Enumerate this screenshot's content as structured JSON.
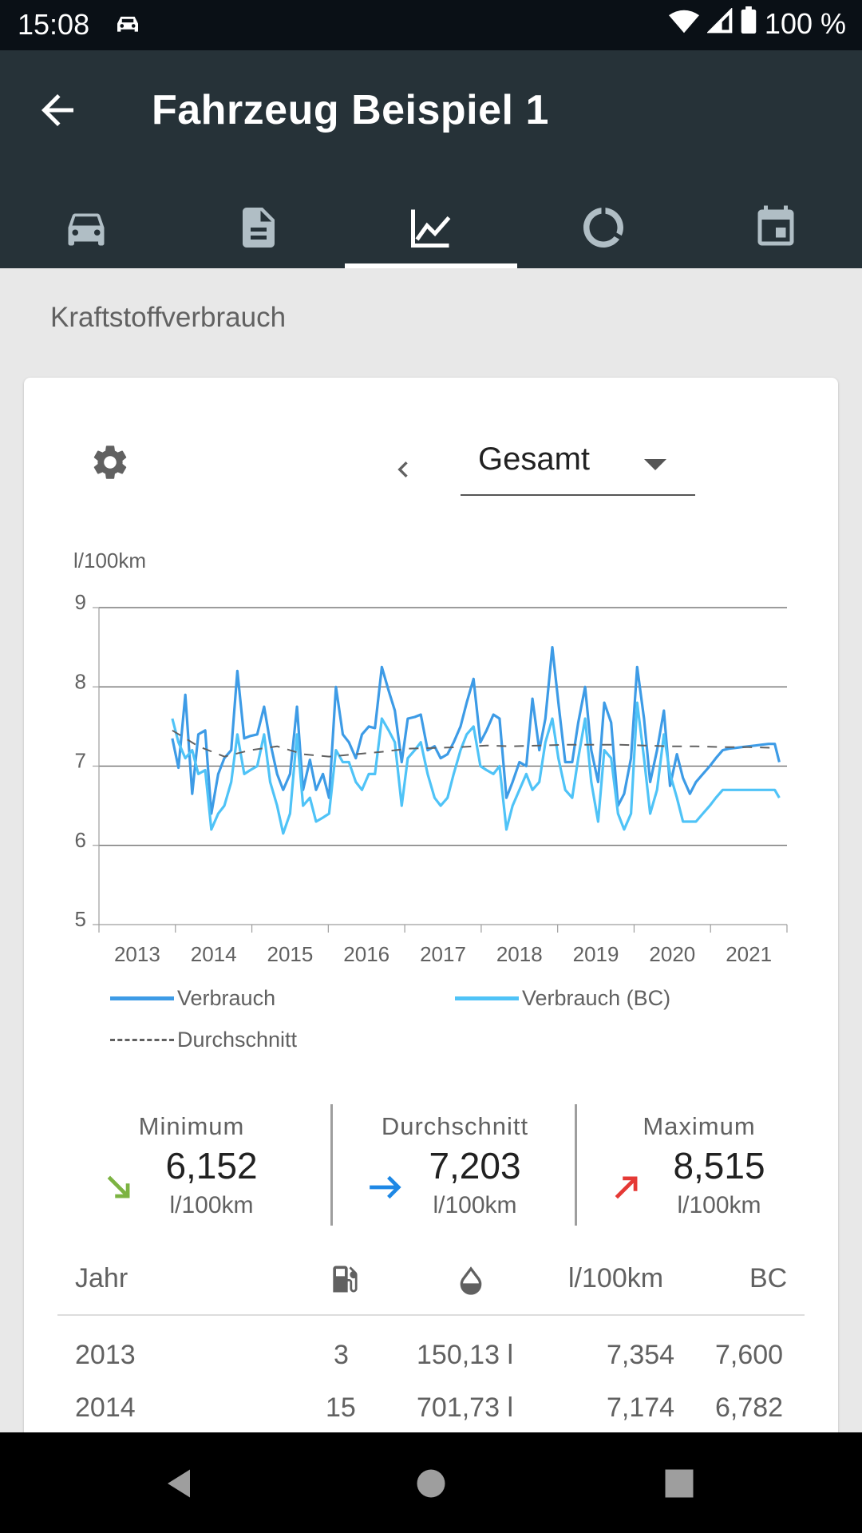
{
  "status": {
    "time": "15:08",
    "battery": "100 %"
  },
  "appbar": {
    "title": "Fahrzeug Beispiel 1",
    "tabs": [
      "car-icon",
      "document-icon",
      "chart-icon",
      "donut-icon",
      "calendar-icon"
    ],
    "active_tab": 2
  },
  "section_title": "Kraftstoffverbrauch",
  "controls": {
    "period": "Gesamt"
  },
  "chart_data": {
    "type": "line",
    "ylabel": "l/100km",
    "ylim": [
      5,
      9
    ],
    "yticks": [
      "5",
      "6",
      "7",
      "8",
      "9"
    ],
    "xlim": [
      2012.5,
      2021.5
    ],
    "xticks": [
      "2013",
      "2014",
      "2015",
      "2016",
      "2017",
      "2018",
      "2019",
      "2020",
      "2021"
    ],
    "grid": true,
    "legend_position": "bottom",
    "series": [
      {
        "name": "Verbrauch",
        "color": "#3d9be6",
        "style": "solid",
        "x": [
          2013.46,
          2013.54,
          2013.63,
          2013.72,
          2013.8,
          2013.89,
          2013.97,
          2014.06,
          2014.14,
          2014.23,
          2014.31,
          2014.4,
          2014.48,
          2014.57,
          2014.66,
          2014.74,
          2014.83,
          2014.91,
          2015.0,
          2015.09,
          2015.17,
          2015.26,
          2015.34,
          2015.43,
          2015.51,
          2015.6,
          2015.69,
          2015.77,
          2015.86,
          2015.94,
          2016.03,
          2016.11,
          2016.2,
          2016.29,
          2016.37,
          2016.46,
          2016.54,
          2016.63,
          2016.71,
          2016.8,
          2016.89,
          2016.97,
          2017.06,
          2017.14,
          2017.23,
          2017.31,
          2017.4,
          2017.49,
          2017.57,
          2017.66,
          2017.74,
          2017.83,
          2017.91,
          2018.0,
          2018.09,
          2018.17,
          2018.26,
          2018.34,
          2018.43,
          2018.51,
          2018.6,
          2018.69,
          2018.77,
          2018.86,
          2018.94,
          2019.03,
          2019.11,
          2019.2,
          2019.29,
          2019.37,
          2019.46,
          2019.54,
          2019.63,
          2019.71,
          2019.8,
          2019.89,
          2019.97,
          2020.06,
          2020.14,
          2020.23,
          2020.31,
          2020.4,
          2020.49,
          2020.57,
          2020.66,
          2020.74,
          2020.83,
          2020.91,
          2021.0,
          2021.09,
          2021.17,
          2021.26,
          2021.34,
          2021.4
        ],
        "y": [
          7.35,
          6.98,
          7.9,
          6.65,
          7.4,
          7.45,
          6.4,
          6.9,
          7.1,
          7.2,
          8.2,
          7.35,
          7.38,
          7.4,
          7.75,
          7.3,
          6.9,
          6.7,
          6.9,
          7.75,
          6.7,
          7.08,
          6.7,
          6.9,
          6.6,
          8.0,
          7.4,
          7.3,
          7.1,
          7.4,
          7.5,
          7.48,
          8.25,
          7.95,
          7.7,
          7.05,
          7.6,
          7.62,
          7.65,
          7.2,
          7.25,
          7.1,
          7.15,
          7.3,
          7.5,
          7.8,
          8.1,
          7.3,
          7.45,
          7.65,
          7.6,
          6.6,
          6.8,
          7.05,
          7.0,
          7.85,
          7.2,
          7.6,
          8.5,
          7.8,
          7.05,
          7.05,
          7.55,
          8.0,
          7.2,
          6.8,
          7.8,
          7.55,
          6.5,
          6.65,
          7.1,
          8.25,
          7.6,
          6.8,
          7.2,
          7.7,
          6.75,
          7.15,
          6.85,
          6.65,
          6.8,
          6.9,
          7.0,
          7.1,
          7.2,
          7.22,
          7.23,
          7.24,
          7.25,
          7.26,
          7.27,
          7.28,
          7.28,
          7.05
        ]
      },
      {
        "name": "Verbrauch (BC)",
        "color": "#4fc3f7",
        "style": "solid",
        "x": [
          2013.46,
          2013.54,
          2013.63,
          2013.72,
          2013.8,
          2013.89,
          2013.97,
          2014.06,
          2014.14,
          2014.23,
          2014.31,
          2014.4,
          2014.48,
          2014.57,
          2014.66,
          2014.74,
          2014.83,
          2014.91,
          2015.0,
          2015.09,
          2015.17,
          2015.26,
          2015.34,
          2015.43,
          2015.51,
          2015.6,
          2015.69,
          2015.77,
          2015.86,
          2015.94,
          2016.03,
          2016.11,
          2016.2,
          2016.29,
          2016.37,
          2016.46,
          2016.54,
          2016.63,
          2016.71,
          2016.8,
          2016.89,
          2016.97,
          2017.06,
          2017.14,
          2017.23,
          2017.31,
          2017.4,
          2017.49,
          2017.57,
          2017.66,
          2017.74,
          2017.83,
          2017.91,
          2018.0,
          2018.09,
          2018.17,
          2018.26,
          2018.34,
          2018.43,
          2018.51,
          2018.6,
          2018.69,
          2018.77,
          2018.86,
          2018.94,
          2019.03,
          2019.11,
          2019.2,
          2019.29,
          2019.37,
          2019.46,
          2019.54,
          2019.63,
          2019.71,
          2019.8,
          2019.89,
          2019.97,
          2020.06,
          2020.14,
          2020.23,
          2020.31,
          2020.4,
          2020.49,
          2020.57,
          2020.66,
          2020.74,
          2020.83,
          2020.91,
          2021.0,
          2021.09,
          2021.17,
          2021.26,
          2021.34,
          2021.4
        ],
        "y": [
          7.6,
          7.3,
          7.1,
          7.2,
          6.9,
          6.95,
          6.2,
          6.4,
          6.5,
          6.8,
          7.4,
          6.9,
          6.95,
          7.0,
          7.4,
          6.8,
          6.5,
          6.15,
          6.4,
          7.4,
          6.5,
          6.6,
          6.3,
          6.35,
          6.4,
          7.2,
          7.05,
          7.05,
          6.8,
          6.7,
          6.9,
          6.9,
          7.6,
          7.45,
          7.3,
          6.5,
          7.1,
          7.2,
          7.3,
          6.9,
          6.6,
          6.5,
          6.6,
          6.9,
          7.2,
          7.4,
          7.5,
          7.0,
          6.95,
          6.9,
          7.0,
          6.2,
          6.5,
          6.7,
          6.9,
          6.7,
          6.8,
          7.3,
          7.6,
          7.1,
          6.7,
          6.6,
          7.1,
          7.6,
          6.8,
          6.3,
          7.2,
          7.1,
          6.4,
          6.2,
          6.4,
          7.8,
          7.1,
          6.4,
          6.7,
          7.4,
          6.9,
          6.6,
          6.3,
          6.3,
          6.3,
          6.4,
          6.5,
          6.6,
          6.7,
          6.7,
          6.7,
          6.7,
          6.7,
          6.7,
          6.7,
          6.7,
          6.7,
          6.6
        ]
      },
      {
        "name": "Durchschnitt",
        "color": "#616161",
        "style": "dashed",
        "x": [
          2013.46,
          2013.8,
          2014.14,
          2014.48,
          2014.83,
          2015.17,
          2015.51,
          2015.86,
          2016.2,
          2016.54,
          2016.89,
          2017.23,
          2017.57,
          2017.91,
          2018.26,
          2018.6,
          2018.94,
          2019.29,
          2019.63,
          2019.97,
          2020.31,
          2020.66,
          2021.0,
          2021.34
        ],
        "y": [
          7.45,
          7.25,
          7.12,
          7.2,
          7.25,
          7.15,
          7.12,
          7.15,
          7.18,
          7.22,
          7.23,
          7.24,
          7.26,
          7.25,
          7.26,
          7.27,
          7.27,
          7.27,
          7.26,
          7.25,
          7.25,
          7.24,
          7.24,
          7.23
        ]
      }
    ]
  },
  "stats": {
    "min": {
      "label": "Minimum",
      "value": "6,152",
      "unit": "l/100km",
      "arrow_color": "#7cb342"
    },
    "avg": {
      "label": "Durchschnitt",
      "value": "7,203",
      "unit": "l/100km",
      "arrow_color": "#1e88e5"
    },
    "max": {
      "label": "Maximum",
      "value": "8,515",
      "unit": "l/100km",
      "arrow_color": "#e53935"
    }
  },
  "table": {
    "headers": {
      "year": "Jahr",
      "fuel_icon": "fuel-pump-icon",
      "drop_icon": "drop-icon",
      "consumption": "l/100km",
      "bc": "BC"
    },
    "rows": [
      {
        "year": "2013",
        "count": "3",
        "volume": "150,13 l",
        "consumption": "7,354",
        "bc": "7,600"
      },
      {
        "year": "2014",
        "count": "15",
        "volume": "701,73 l",
        "consumption": "7,174",
        "bc": "6,782"
      }
    ]
  }
}
